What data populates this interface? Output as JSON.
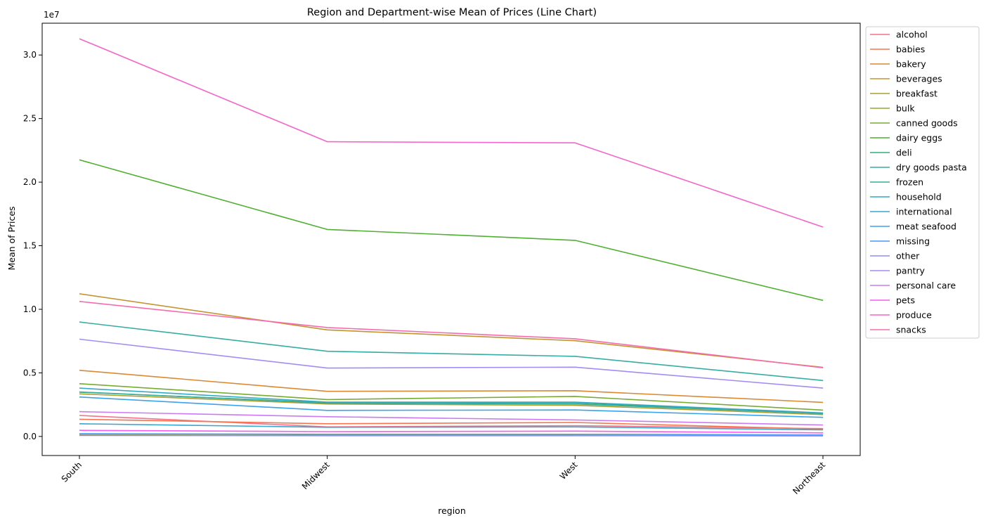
{
  "chart_data": {
    "type": "line",
    "title": "Region and Department-wise Mean of Prices (Line Chart)",
    "xlabel": "region",
    "ylabel": "Mean of Prices",
    "y_offset_label": "1e7",
    "categories": [
      "South",
      "Midwest",
      "West",
      "Northeast"
    ],
    "yticks": [
      0.0,
      0.5,
      1.0,
      1.5,
      2.0,
      2.5,
      3.0
    ],
    "ytick_labels": [
      "0.0",
      "0.5",
      "1.0",
      "1.5",
      "2.0",
      "2.5",
      "3.0"
    ],
    "ylim": [
      -0.15,
      3.25
    ],
    "grid": false,
    "legend_position": "outside-top-right",
    "series": [
      {
        "name": "alcohol",
        "color": "#f77189",
        "values": [
          0.165,
          0.075,
          0.085,
          0.062
        ]
      },
      {
        "name": "babies",
        "color": "#f7754f",
        "values": [
          0.135,
          0.1,
          0.11,
          0.058
        ]
      },
      {
        "name": "bakery",
        "color": "#dc8932",
        "values": [
          0.52,
          0.355,
          0.36,
          0.268
        ]
      },
      {
        "name": "beverages",
        "color": "#c39532",
        "values": [
          1.122,
          0.838,
          0.753,
          0.543
        ]
      },
      {
        "name": "breakfast",
        "color": "#ae9d31",
        "values": [
          0.335,
          0.255,
          0.245,
          0.172
        ]
      },
      {
        "name": "bulk",
        "color": "#97a431",
        "values": [
          0.012,
          0.008,
          0.008,
          0.005
        ]
      },
      {
        "name": "canned goods",
        "color": "#77ab31",
        "values": [
          0.415,
          0.29,
          0.315,
          0.207
        ]
      },
      {
        "name": "dairy eggs",
        "color": "#4fb031",
        "values": [
          2.175,
          1.628,
          1.542,
          1.07
        ]
      },
      {
        "name": "deli",
        "color": "#33b07a",
        "values": [
          0.348,
          0.265,
          0.265,
          0.18
        ]
      },
      {
        "name": "dry goods pasta",
        "color": "#35ad9c",
        "values": [
          0.35,
          0.262,
          0.255,
          0.18
        ]
      },
      {
        "name": "frozen",
        "color": "#36ada4",
        "values": [
          0.9,
          0.67,
          0.63,
          0.44
        ]
      },
      {
        "name": "household",
        "color": "#38a9c5",
        "values": [
          0.38,
          0.27,
          0.27,
          0.185
        ]
      },
      {
        "name": "international",
        "color": "#39a7d0",
        "values": [
          0.1,
          0.072,
          0.075,
          0.052
        ]
      },
      {
        "name": "meat seafood",
        "color": "#3ba3ec",
        "values": [
          0.31,
          0.205,
          0.208,
          0.15
        ]
      },
      {
        "name": "missing",
        "color": "#4a98f5",
        "values": [
          0.022,
          0.017,
          0.017,
          0.012
        ]
      },
      {
        "name": "other",
        "color": "#8e8ff5",
        "values": [
          0.008,
          0.006,
          0.006,
          0.004
        ]
      },
      {
        "name": "pantry",
        "color": "#a48cf4",
        "values": [
          0.765,
          0.538,
          0.545,
          0.38
        ]
      },
      {
        "name": "personal care",
        "color": "#cc7af4",
        "values": [
          0.195,
          0.155,
          0.13,
          0.09
        ]
      },
      {
        "name": "pets",
        "color": "#f45cf2",
        "values": [
          0.048,
          0.038,
          0.042,
          0.028
        ]
      },
      {
        "name": "produce",
        "color": "#f565cc",
        "values": [
          3.128,
          2.318,
          2.309,
          1.647
        ]
      },
      {
        "name": "snacks",
        "color": "#f66bac",
        "values": [
          1.062,
          0.857,
          0.768,
          0.54
        ]
      }
    ]
  }
}
